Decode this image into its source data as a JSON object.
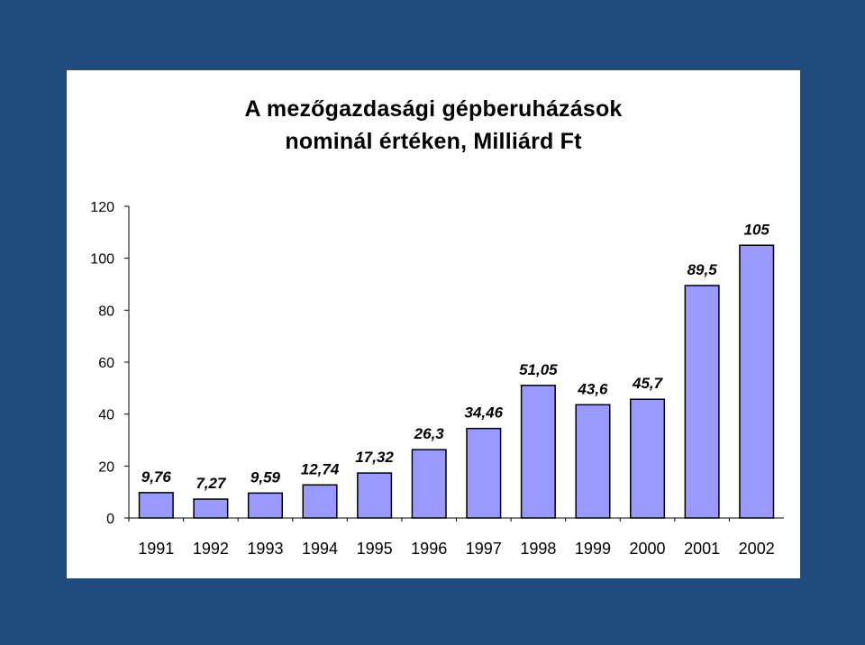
{
  "chart_data": {
    "type": "bar",
    "title_line1": "A mezőgazdasági gépberuházások",
    "title_line2": "nominál értéken, Milliárd Ft",
    "xlabel": "",
    "ylabel": "",
    "ylim": [
      0,
      120
    ],
    "yticks": [
      "0",
      "20",
      "40",
      "60",
      "80",
      "100",
      "120"
    ],
    "categories": [
      "1991",
      "1992",
      "1993",
      "1994",
      "1995",
      "1996",
      "1997",
      "1998",
      "1999",
      "2000",
      "2001",
      "2002"
    ],
    "values": [
      9.76,
      7.27,
      9.59,
      12.74,
      17.32,
      26.3,
      34.46,
      51.05,
      43.6,
      45.7,
      89.5,
      105
    ],
    "value_labels": [
      "9,76",
      "7,27",
      "9,59",
      "12,74",
      "17,32",
      "26,3",
      "34,46",
      "51,05",
      "43,6",
      "45,7",
      "89,5",
      "105"
    ],
    "bar_color": "#9999ff",
    "grid": false,
    "legend": "none"
  }
}
